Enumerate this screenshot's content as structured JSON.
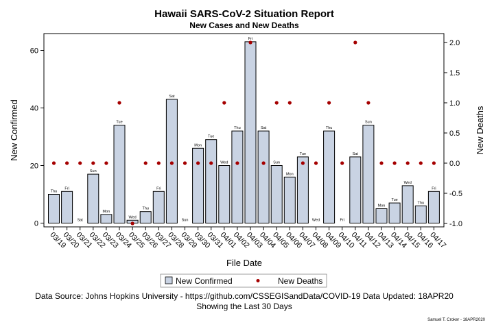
{
  "chart_data": {
    "type": "bar",
    "title": "Hawaii SARS-CoV-2 Situation Report",
    "subtitle": "New Cases and New Deaths",
    "xlabel": "File Date",
    "ylabel": "New Confirmed",
    "y2label": "New Deaths",
    "ylim": [
      0,
      65
    ],
    "y2lim": [
      -1.0,
      2.1
    ],
    "yticks": [
      0,
      20,
      40,
      60
    ],
    "y2ticks": [
      "-1.0",
      "-0.5",
      "0.0",
      "0.5",
      "1.0",
      "1.5",
      "2.0"
    ],
    "grid": false,
    "legend_position": "bottom",
    "categories": [
      "03/19",
      "03/20",
      "03/21",
      "03/22",
      "03/23",
      "03/24",
      "03/25",
      "03/26",
      "03/27",
      "03/28",
      "03/29",
      "03/30",
      "03/31",
      "04/01",
      "04/02",
      "04/03",
      "04/04",
      "04/05",
      "04/06",
      "04/07",
      "04/08",
      "04/09",
      "04/10",
      "04/11",
      "04/12",
      "04/13",
      "04/14",
      "04/15",
      "04/16",
      "04/17"
    ],
    "day_labels": [
      "Thu",
      "Fri",
      "Sat",
      "Sun",
      "Mon",
      "Tue",
      "Wed",
      "Thu",
      "Fri",
      "Sat",
      "Sun",
      "Mon",
      "Tue",
      "Wed",
      "Thu",
      "Fri",
      "Sat",
      "Sun",
      "Mon",
      "Tue",
      "Wed",
      "Thu",
      "Fri",
      "Sat",
      "Sun",
      "Mon",
      "Tue",
      "Wed",
      "Thu",
      "Fri"
    ],
    "series": [
      {
        "name": "New Confirmed",
        "type": "bar",
        "axis": "left",
        "color": "#c9d3e3",
        "values": [
          10,
          11,
          0,
          17,
          3,
          34,
          1,
          4,
          11,
          43,
          0,
          26,
          29,
          20,
          32,
          63,
          32,
          20,
          16,
          23,
          0,
          32,
          0,
          23,
          34,
          5,
          7,
          13,
          6,
          11
        ]
      },
      {
        "name": "New Deaths",
        "type": "scatter",
        "axis": "right",
        "color": "#a50000",
        "values": [
          0,
          0,
          0,
          0,
          0,
          1,
          -1,
          0,
          0,
          0,
          0,
          0,
          0,
          1,
          0,
          2,
          0,
          1,
          1,
          0,
          0,
          1,
          0,
          2,
          1,
          0,
          0,
          0,
          0,
          0
        ]
      }
    ],
    "footnotes": [
      "Data Source: Johns Hopkins University - https://github.com/CSSEGISandData/COVID-19 Data Updated: 18APR20",
      "Showing the Last 30 Days"
    ],
    "credit": "Samuel T. Croker - 18APR2020"
  }
}
